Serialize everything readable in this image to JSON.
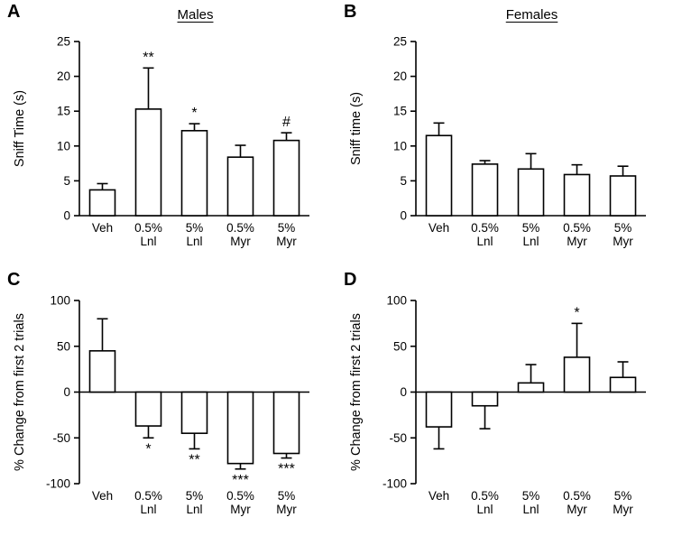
{
  "figure": {
    "background": "#ffffff",
    "axis_color": "#000000",
    "bar_fill": "#ffffff",
    "bar_stroke": "#000000",
    "panels": [
      {
        "label": "A",
        "title": "Males"
      },
      {
        "label": "B",
        "title": "Females"
      },
      {
        "label": "C",
        "title": ""
      },
      {
        "label": "D",
        "title": ""
      }
    ]
  },
  "chart_data": [
    {
      "type": "bar",
      "panel": "A",
      "title": "Males",
      "xlabel": "",
      "ylabel": "Sniff Time (s)",
      "ylim": [
        0,
        25
      ],
      "yticks": [
        0,
        5,
        10,
        15,
        20,
        25
      ],
      "grid": false,
      "legend": "none",
      "categories": [
        [
          "Veh"
        ],
        [
          "0.5%",
          "Lnl"
        ],
        [
          "5%",
          "Lnl"
        ],
        [
          "0.5%",
          "Myr"
        ],
        [
          "5%",
          "Myr"
        ]
      ],
      "values": [
        3.7,
        15.3,
        12.2,
        8.4,
        10.8
      ],
      "errors": [
        0.9,
        5.9,
        1.0,
        1.7,
        1.1
      ],
      "annotations": [
        "",
        "**",
        "*",
        "",
        "#"
      ]
    },
    {
      "type": "bar",
      "panel": "B",
      "title": "Females",
      "xlabel": "",
      "ylabel": "Sniff time (s)",
      "ylim": [
        0,
        25
      ],
      "yticks": [
        0,
        5,
        10,
        15,
        20,
        25
      ],
      "grid": false,
      "legend": "none",
      "categories": [
        [
          "Veh"
        ],
        [
          "0.5%",
          "Lnl"
        ],
        [
          "5%",
          "Lnl"
        ],
        [
          "0.5%",
          "Myr"
        ],
        [
          "5%",
          "Myr"
        ]
      ],
      "values": [
        11.5,
        7.4,
        6.7,
        5.9,
        5.7
      ],
      "errors": [
        1.8,
        0.5,
        2.2,
        1.4,
        1.4
      ],
      "annotations": [
        "",
        "",
        "",
        "",
        ""
      ]
    },
    {
      "type": "bar",
      "panel": "C",
      "title": "",
      "xlabel": "",
      "ylabel": "% Change from first 2 trials",
      "ylim": [
        -100,
        100
      ],
      "yticks": [
        -100,
        -50,
        0,
        50,
        100
      ],
      "grid": false,
      "legend": "none",
      "categories": [
        [
          "Veh"
        ],
        [
          "0.5%",
          "Lnl"
        ],
        [
          "5%",
          "Lnl"
        ],
        [
          "0.5%",
          "Myr"
        ],
        [
          "5%",
          "Myr"
        ]
      ],
      "values": [
        45,
        -37,
        -45,
        -78,
        -67
      ],
      "errors": [
        35,
        13,
        17,
        6,
        5
      ],
      "annotations": [
        "",
        "*",
        "**",
        "***",
        "***"
      ]
    },
    {
      "type": "bar",
      "panel": "D",
      "title": "",
      "xlabel": "",
      "ylabel": "% Change from first 2 trials",
      "ylim": [
        -100,
        100
      ],
      "yticks": [
        -100,
        -50,
        0,
        50,
        100
      ],
      "grid": false,
      "legend": "none",
      "categories": [
        [
          "Veh"
        ],
        [
          "0.5%",
          "Lnl"
        ],
        [
          "5%",
          "Lnl"
        ],
        [
          "0.5%",
          "Myr"
        ],
        [
          "5%",
          "Myr"
        ]
      ],
      "values": [
        -38,
        -15,
        10,
        38,
        16
      ],
      "errors": [
        24,
        25,
        20,
        37,
        17
      ],
      "annotations": [
        "",
        "",
        "",
        "*",
        ""
      ]
    }
  ]
}
